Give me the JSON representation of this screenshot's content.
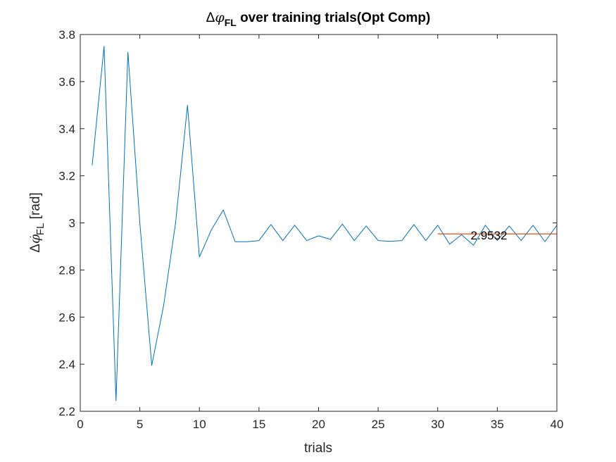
{
  "chart_data": {
    "type": "line",
    "title": {
      "prefix": "Δ",
      "symbol": "φ",
      "subscript": "FL",
      "rest": " over training trials(Opt Comp)"
    },
    "xlabel": "trials",
    "ylabel": {
      "prefix": "Δ",
      "symbol": "φ",
      "dot": "·",
      "subscript": "FL",
      "rest": " [rad]"
    },
    "xlim": [
      0,
      40
    ],
    "ylim": [
      2.2,
      3.8
    ],
    "xticks": [
      0,
      5,
      10,
      15,
      20,
      25,
      30,
      35,
      40
    ],
    "xtick_labels": [
      "0",
      "5",
      "10",
      "15",
      "20",
      "25",
      "30",
      "35",
      "40"
    ],
    "yticks": [
      2.2,
      2.4,
      2.6,
      2.8,
      3.0,
      3.2,
      3.4,
      3.6,
      3.8
    ],
    "ytick_labels": [
      "2.2",
      "2.4",
      "2.6",
      "2.8",
      "3",
      "3.2",
      "3.4",
      "3.6",
      "3.8"
    ],
    "grid": false,
    "series": [
      {
        "color": "#0072BD",
        "x": [
          1,
          2,
          3,
          4,
          5,
          6,
          7,
          8,
          9,
          10,
          11,
          12,
          13,
          14,
          15,
          16,
          17,
          18,
          19,
          20,
          21,
          22,
          23,
          24,
          25,
          26,
          27,
          28,
          29,
          30,
          31,
          32,
          33,
          34,
          35,
          36,
          37,
          38,
          39,
          40
        ],
        "values": [
          3.245,
          3.75,
          2.245,
          3.725,
          3.0,
          2.395,
          2.65,
          3.0,
          3.5,
          2.855,
          2.97,
          3.055,
          2.92,
          2.92,
          2.925,
          2.993,
          2.925,
          2.99,
          2.925,
          2.945,
          2.93,
          2.995,
          2.925,
          2.987,
          2.925,
          2.922,
          2.925,
          2.993,
          2.925,
          2.99,
          2.91,
          2.95,
          2.905,
          2.99,
          2.925,
          2.987,
          2.925,
          2.99,
          2.92,
          2.99
        ]
      },
      {
        "color": "#D95319",
        "x": [
          30,
          40
        ],
        "values": [
          2.9532,
          2.9532
        ]
      }
    ],
    "annotations": [
      {
        "text": "2.9532",
        "x": 33,
        "y": 2.9532
      }
    ]
  }
}
